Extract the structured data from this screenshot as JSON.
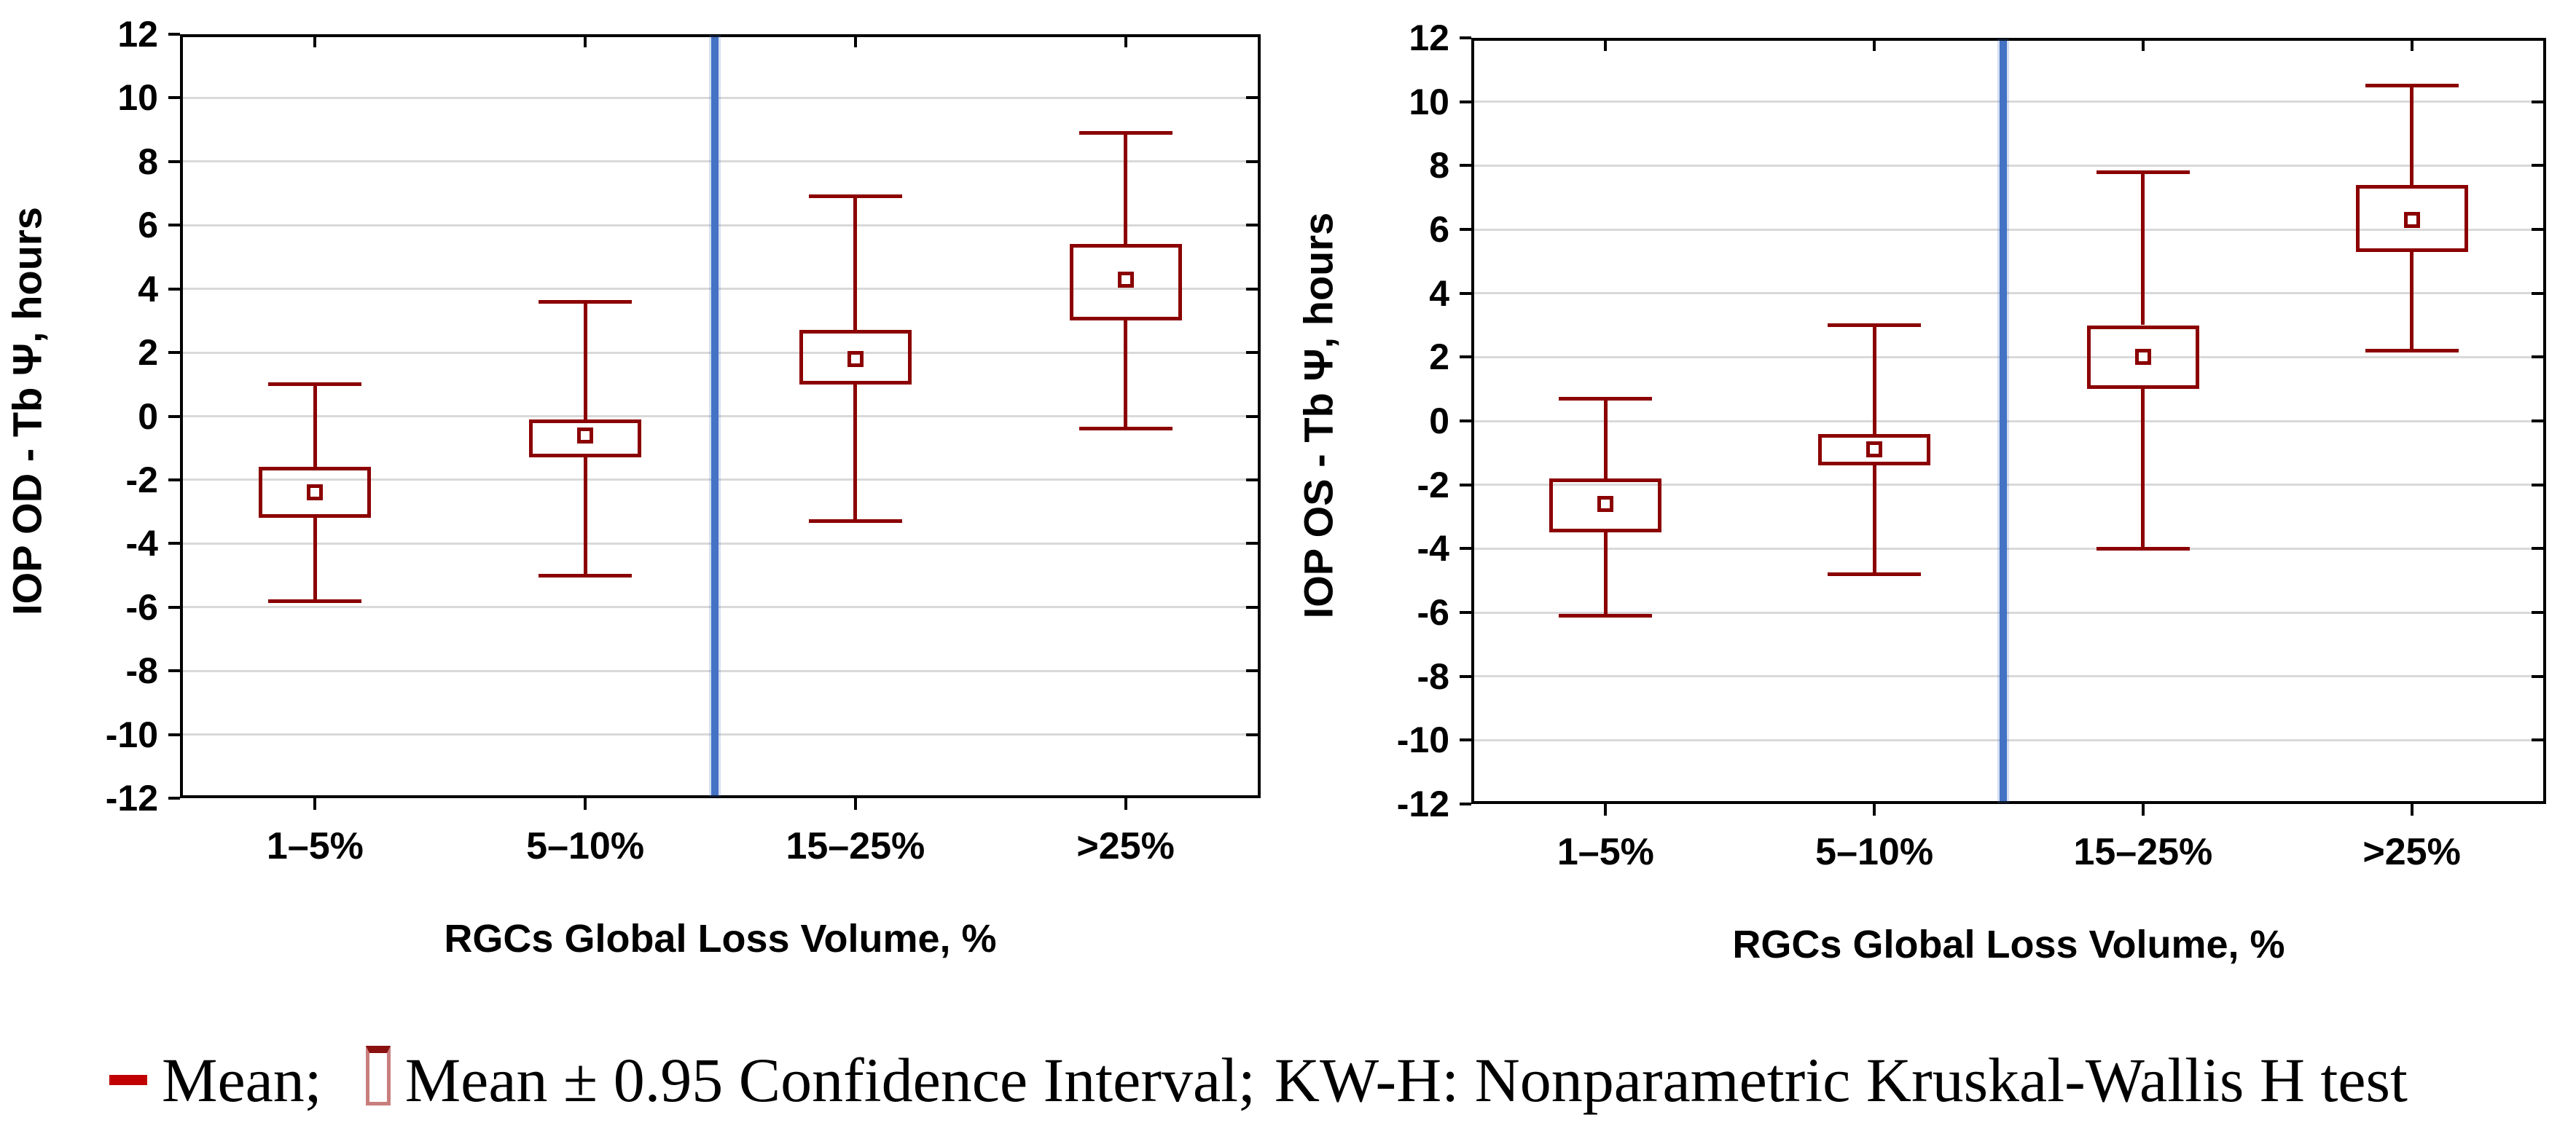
{
  "figure": {
    "background": "#ffffff"
  },
  "colors": {
    "box": "#8B0000",
    "legend_dash": "#C00000",
    "separator_line": "#4472C4",
    "gridline": "#D9D9D9",
    "axis": "#000000"
  },
  "legend": {
    "mean_label": "Mean;",
    "ci_label": "Mean ± 0.95 Confidence Interval;",
    "kw_label": "KW-H: Nonparametric Kruskal-Wallis H test"
  },
  "chart_data": [
    {
      "type": "box",
      "ylabel": "IOP OD - Tb Ψ, hours",
      "xlabel": "RGCs Global Loss Volume, %",
      "ylim": [
        -12,
        12
      ],
      "y_ticks": [
        12,
        10,
        8,
        6,
        4,
        2,
        0,
        -2,
        -4,
        -6,
        -8,
        -10,
        -12
      ],
      "grid": true,
      "categories": [
        "1–5%",
        "5–10%",
        "15–25%",
        ">25%"
      ],
      "separator_between": [
        "5–10%",
        "15–25%"
      ],
      "series": [
        {
          "category": "1–5%",
          "mean": -2.4,
          "ci": [
            -3.2,
            -1.6
          ],
          "whiskers": [
            -5.8,
            1.0
          ]
        },
        {
          "category": "5–10%",
          "mean": -0.6,
          "ci": [
            -1.3,
            -0.1
          ],
          "whiskers": [
            -5.0,
            3.6
          ]
        },
        {
          "category": "15–25%",
          "mean": 1.8,
          "ci": [
            1.0,
            2.7
          ],
          "whiskers": [
            -3.3,
            6.9
          ]
        },
        {
          "category": ">25%",
          "mean": 4.3,
          "ci": [
            3.0,
            5.4
          ],
          "whiskers": [
            -0.4,
            8.9
          ]
        }
      ]
    },
    {
      "type": "box",
      "ylabel": "IOP OS - Tb Ψ, hours",
      "xlabel": "RGCs Global Loss Volume, %",
      "ylim": [
        -12,
        12
      ],
      "y_ticks": [
        12,
        10,
        8,
        6,
        4,
        2,
        0,
        -2,
        -4,
        -6,
        -8,
        -10,
        -12
      ],
      "grid": true,
      "categories": [
        "1–5%",
        "5–10%",
        "15–25%",
        ">25%"
      ],
      "separator_between": [
        "5–10%",
        "15–25%"
      ],
      "series": [
        {
          "category": "1–5%",
          "mean": -2.6,
          "ci": [
            -3.5,
            -1.8
          ],
          "whiskers": [
            -6.1,
            0.7
          ]
        },
        {
          "category": "5–10%",
          "mean": -0.9,
          "ci": [
            -1.4,
            -0.4
          ],
          "whiskers": [
            -4.8,
            3.0
          ]
        },
        {
          "category": "15–25%",
          "mean": 2.0,
          "ci": [
            1.0,
            3.0
          ],
          "whiskers": [
            -4.0,
            7.8
          ]
        },
        {
          "category": ">25%",
          "mean": 6.3,
          "ci": [
            5.3,
            7.4
          ],
          "whiskers": [
            2.2,
            10.5
          ]
        }
      ]
    }
  ]
}
